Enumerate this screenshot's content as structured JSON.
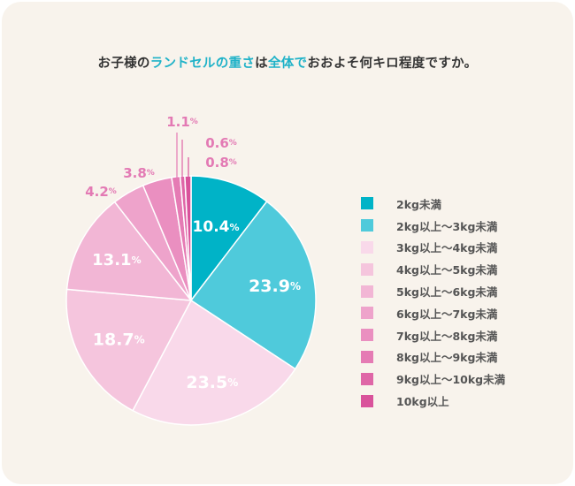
{
  "title": {
    "part1": "お子様の",
    "highlight1": "ランドセルの重さ",
    "part2": "は",
    "highlight2": "全体で",
    "part3": "おおよそ何キロ程度ですか。"
  },
  "colors": {
    "card_bg": "#f8f3ec",
    "accent": "#1fb2c8",
    "label_pink": "#e37ab4"
  },
  "chart_data": {
    "type": "pie",
    "unit": "%",
    "start_angle_deg": 0,
    "direction": "clockwise",
    "slices": [
      {
        "label": "2kg未満",
        "value": 10.4,
        "color": "#00b3c7"
      },
      {
        "label": "2kg以上〜3kg未満",
        "value": 23.9,
        "color": "#4fcadb"
      },
      {
        "label": "3kg以上〜4kg未満",
        "value": 23.5,
        "color": "#f9d9ea"
      },
      {
        "label": "4kg以上〜5kg未満",
        "value": 18.7,
        "color": "#f5c5dd"
      },
      {
        "label": "5kg以上〜6kg未満",
        "value": 13.1,
        "color": "#f2b6d5"
      },
      {
        "label": "6kg以上〜7kg未満",
        "value": 4.2,
        "color": "#eea3cb"
      },
      {
        "label": "7kg以上〜8kg未満",
        "value": 3.8,
        "color": "#ea8fc0"
      },
      {
        "label": "8kg以上〜9kg未満",
        "value": 1.1,
        "color": "#e57bb4"
      },
      {
        "label": "9kg以上〜10kg未満",
        "value": 0.6,
        "color": "#df66a7"
      },
      {
        "label": "10kg以上",
        "value": 0.8,
        "color": "#d9529b"
      }
    ]
  }
}
